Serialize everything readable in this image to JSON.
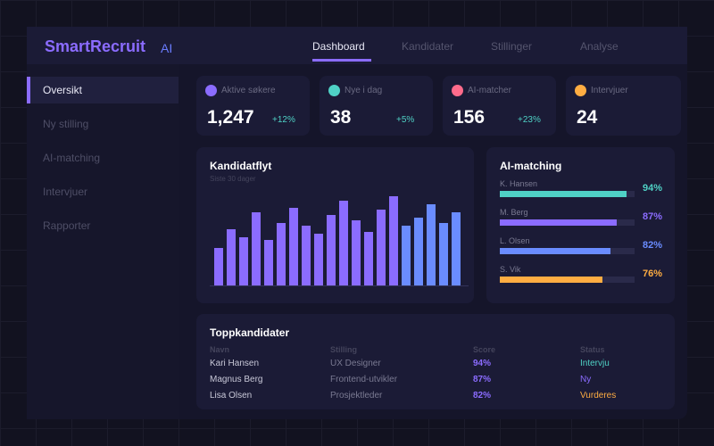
{
  "app": {
    "logo": "SmartRecruit",
    "logo_suffix": "AI"
  },
  "nav": [
    {
      "label": "Dashboard",
      "active": true
    },
    {
      "label": "Kandidater"
    },
    {
      "label": "Stillinger"
    },
    {
      "label": "Analyse"
    }
  ],
  "sidebar": [
    {
      "label": "Oversikt",
      "active": true
    },
    {
      "label": "Ny stilling"
    },
    {
      "label": "AI-matching"
    },
    {
      "label": "Intervjuer"
    },
    {
      "label": "Rapporter"
    }
  ],
  "stats": [
    {
      "label": "Aktive søkere",
      "value": "1,247",
      "delta": "+12%",
      "color": "#8b6cff"
    },
    {
      "label": "Nye i dag",
      "value": "38",
      "delta": "+5%",
      "color": "#4fd1c5"
    },
    {
      "label": "AI-matcher",
      "value": "156",
      "delta": "+23%",
      "color": "#ff6b8b"
    },
    {
      "label": "Intervjuer",
      "value": "24",
      "delta": "",
      "color": "#ffad42"
    }
  ],
  "chart_data": {
    "type": "bar",
    "title": "Kandidatflyt",
    "subtitle": "Siste 30 dager",
    "values": [
      42,
      63,
      54,
      82,
      51,
      70,
      87,
      67,
      58,
      79,
      95,
      73,
      60,
      85,
      100,
      67,
      76,
      91,
      70,
      82
    ],
    "colors": {
      "primary": "#8b6cff",
      "recent": "#6a8cff"
    },
    "recent_count": 5,
    "grid": false
  },
  "matching": {
    "title": "AI-matching",
    "items": [
      {
        "name": "K. Hansen",
        "pct": 94,
        "label": "94%",
        "color": "#4fd1c5"
      },
      {
        "name": "M. Berg",
        "pct": 87,
        "label": "87%",
        "color": "#8b6cff"
      },
      {
        "name": "L. Olsen",
        "pct": 82,
        "label": "82%",
        "color": "#6a8cff"
      },
      {
        "name": "S. Vik",
        "pct": 76,
        "label": "76%",
        "color": "#ffad42"
      }
    ]
  },
  "table": {
    "title": "Toppkandidater",
    "headers": [
      "Navn",
      "Stilling",
      "Score",
      "Status"
    ],
    "rows": [
      {
        "name": "Kari Hansen",
        "role": "UX Designer",
        "score": "94%",
        "status": "Intervju",
        "status_color": "#4fd1c5"
      },
      {
        "name": "Magnus Berg",
        "role": "Frontend-utvikler",
        "score": "87%",
        "status": "Ny",
        "status_color": "#8b6cff"
      },
      {
        "name": "Lisa Olsen",
        "role": "Prosjektleder",
        "score": "82%",
        "status": "Vurderes",
        "status_color": "#ffad42"
      }
    ]
  }
}
